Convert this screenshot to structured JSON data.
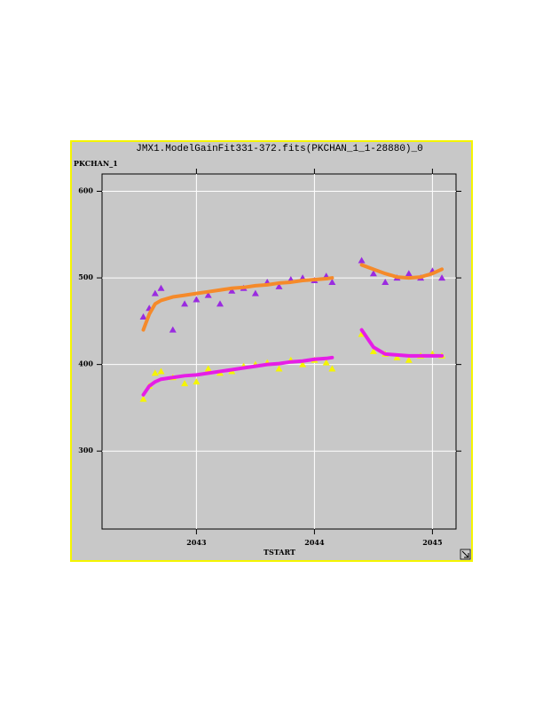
{
  "chart_data": {
    "type": "scatter",
    "title": "JMX1.ModelGainFit331-372.fits(PKCHAN_1_1-28880)_0",
    "y_label": "PKCHAN_1",
    "x_label": "TSTART",
    "x": [
      2042.55,
      2042.6,
      2042.65,
      2042.7,
      2042.8,
      2042.9,
      2043.0,
      2043.1,
      2043.2,
      2043.3,
      2043.4,
      2043.5,
      2043.6,
      2043.7,
      2043.8,
      2043.9,
      2044.0,
      2044.1,
      2044.15,
      2044.3,
      2044.4,
      2044.5,
      2044.6,
      2044.7,
      2044.8,
      2044.9,
      2045.0,
      2045.08
    ],
    "series": [
      {
        "color": "#9a2be0",
        "mode": "markers",
        "values": [
          455,
          465,
          482,
          488,
          440,
          470,
          475,
          480,
          470,
          485,
          488,
          482,
          495,
          490,
          498,
          500,
          497,
          502,
          495,
          null,
          520,
          505,
          495,
          500,
          505,
          500,
          508,
          500
        ]
      },
      {
        "color": "#f58a2a",
        "mode": "line",
        "values": [
          440,
          458,
          470,
          474,
          478,
          480,
          482,
          484,
          486,
          488,
          489,
          491,
          492,
          494,
          495,
          497,
          498,
          499,
          500,
          null,
          515,
          510,
          505,
          501,
          500,
          501,
          505,
          510
        ]
      },
      {
        "color": "#f5f500",
        "mode": "markers",
        "values": [
          360,
          375,
          390,
          392,
          385,
          378,
          380,
          395,
          390,
          392,
          398,
          400,
          402,
          395,
          405,
          400,
          405,
          402,
          395,
          null,
          435,
          415,
          412,
          408,
          405,
          410,
          412,
          410
        ]
      },
      {
        "color": "#e61ee6",
        "mode": "line",
        "values": [
          365,
          375,
          380,
          383,
          385,
          387,
          388,
          390,
          392,
          394,
          396,
          398,
          400,
          401,
          403,
          404,
          406,
          407,
          408,
          null,
          440,
          420,
          412,
          411,
          410,
          410,
          410,
          410
        ]
      }
    ],
    "xlim": [
      2042.2,
      2045.2
    ],
    "xticks": [
      2043,
      2044,
      2045
    ],
    "ylim": [
      210,
      620
    ],
    "yticks": [
      300,
      400,
      500,
      600
    ],
    "grid": true
  }
}
